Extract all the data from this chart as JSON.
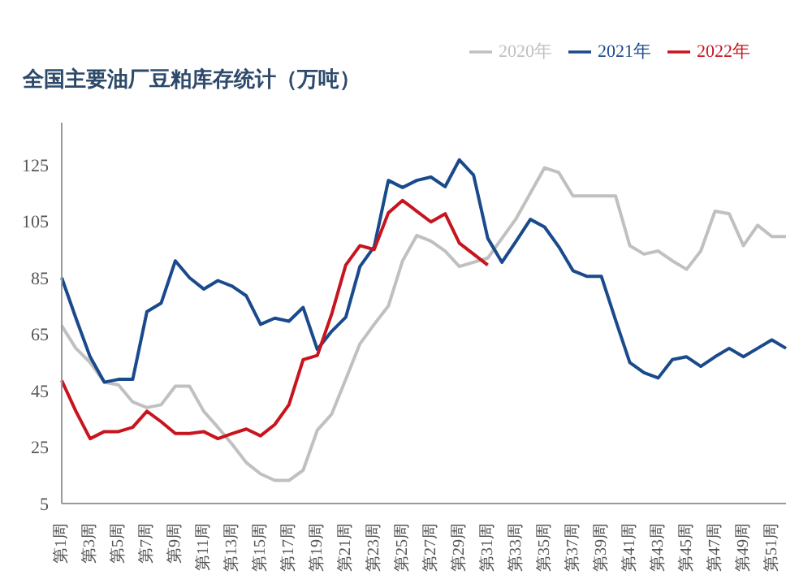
{
  "chart_data": {
    "type": "line",
    "title": "全国主要油厂豆粕库存统计（万吨）",
    "categories": [
      "第1周",
      null,
      "第3周",
      null,
      "第5周",
      null,
      "第7周",
      null,
      "第9周",
      null,
      "第11周",
      null,
      "第13周",
      null,
      "第15周",
      null,
      "第17周",
      null,
      "第19周",
      null,
      "第21周",
      null,
      "第23周",
      null,
      "第25周",
      null,
      "第27周",
      null,
      "第29周",
      null,
      "第31周",
      null,
      "第33周",
      null,
      "第35周",
      null,
      "第37周",
      null,
      "第39周",
      null,
      "第41周",
      null,
      "第43周",
      null,
      "第45周",
      null,
      "第47周",
      null,
      "第49周",
      null,
      "第51周",
      null
    ],
    "series": [
      {
        "name": "2020年",
        "color": "#c0c0c0",
        "values": [
          68,
          60,
          55,
          48,
          47,
          41,
          39,
          40,
          46.6,
          46.6,
          37.7,
          32,
          26,
          19.5,
          15.5,
          13.2,
          13.2,
          16.8,
          31,
          36.6,
          49,
          61.6,
          68.5,
          75,
          91,
          100,
          98,
          94.5,
          89,
          90.5,
          92,
          99,
          106,
          115,
          124,
          122.3,
          114,
          114,
          114,
          114,
          96.4,
          93.4,
          94.5,
          91,
          88,
          94.5,
          108.6,
          107.7,
          96.4,
          103.6,
          99.6,
          99.6
        ]
      },
      {
        "name": "2021年",
        "color": "#1a4a8c",
        "values": [
          85,
          70.7,
          57,
          48,
          49,
          49,
          73,
          76,
          91,
          85,
          81,
          84,
          82,
          78.6,
          68.5,
          70.7,
          69.6,
          74.5,
          59.6,
          66,
          71,
          89,
          96,
          119.5,
          117,
          119.5,
          120.7,
          117.3,
          126.8,
          121.4,
          99,
          90.5,
          98,
          105.7,
          103,
          96,
          87.5,
          85.5,
          85.5,
          70,
          55,
          51.4,
          49.5,
          56,
          57,
          53.6,
          57,
          60,
          57,
          60,
          63,
          60
        ]
      },
      {
        "name": "2022年",
        "color": "#c8141e",
        "values": [
          48.6,
          37.7,
          28,
          30.5,
          30.5,
          32,
          37.7,
          34,
          29.8,
          29.8,
          30.5,
          28,
          29.8,
          31.4,
          29,
          33,
          40,
          56,
          57.5,
          72,
          89.5,
          96.4,
          95,
          108,
          112.4,
          108.6,
          104.8,
          107.7,
          97.3,
          93.4,
          89.5,
          null,
          null,
          null,
          null,
          null,
          null,
          null,
          null,
          null,
          null,
          null,
          null,
          null,
          null,
          null,
          null,
          null,
          null,
          null,
          null,
          null
        ]
      }
    ],
    "ylim": [
      5,
      140
    ],
    "yticks": [
      5,
      25,
      45,
      65,
      85,
      105,
      125
    ],
    "legend": "top",
    "grid": false,
    "marker": "none",
    "line_style": "solid"
  }
}
